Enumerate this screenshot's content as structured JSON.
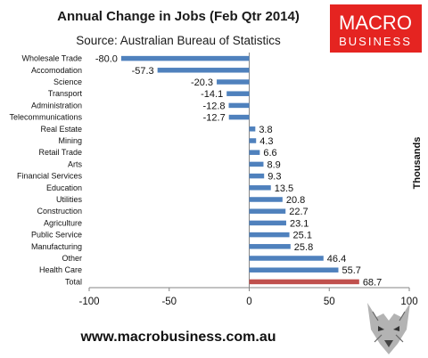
{
  "header": {
    "title": "Annual Change in Jobs (Feb Qtr 2014)",
    "subtitle": "Source: Australian Bureau of Statistics"
  },
  "logo": {
    "line1": "MACRO",
    "line2": "BUSINESS",
    "bg_color": "#e52421"
  },
  "footer": {
    "url": "www.macrobusiness.com.au",
    "wolf_icon": "wolf-head-icon"
  },
  "chart_data": {
    "type": "bar",
    "orientation": "horizontal",
    "categories": [
      "Wholesale Trade",
      "Accomodation",
      "Science",
      "Transport",
      "Administration",
      "Telecommunications",
      "Real Estate",
      "Mining",
      "Retail Trade",
      "Arts",
      "Financial Services",
      "Education",
      "Utilities",
      "Construction",
      "Agriculture",
      "Public Service",
      "Manufacturing",
      "Other",
      "Health Care",
      "Total"
    ],
    "values": [
      -80.0,
      -57.3,
      -20.3,
      -14.1,
      -12.8,
      -12.7,
      3.8,
      4.3,
      6.6,
      8.9,
      9.3,
      13.5,
      20.8,
      22.7,
      23.1,
      25.1,
      25.8,
      46.4,
      55.7,
      68.7
    ],
    "value_labels": [
      "-80.0",
      "-57.3",
      "-20.3",
      "-14.1",
      "-12.8",
      "-12.7",
      "3.8",
      "4.3",
      "6.6",
      "8.9",
      "9.3",
      "13.5",
      "20.8",
      "22.7",
      "23.1",
      "25.1",
      "25.8",
      "46.4",
      "55.7",
      "68.7"
    ],
    "xlim": [
      -100,
      100
    ],
    "xticks": [
      -100,
      -50,
      0,
      50,
      100
    ],
    "xtick_labels": [
      "-100",
      "-50",
      "0",
      "50",
      "100"
    ],
    "ylabel": "Thousands",
    "bar_color": "#4f81bd",
    "highlight_color": "#c0504d",
    "highlight_category": "Total",
    "grid": false
  }
}
